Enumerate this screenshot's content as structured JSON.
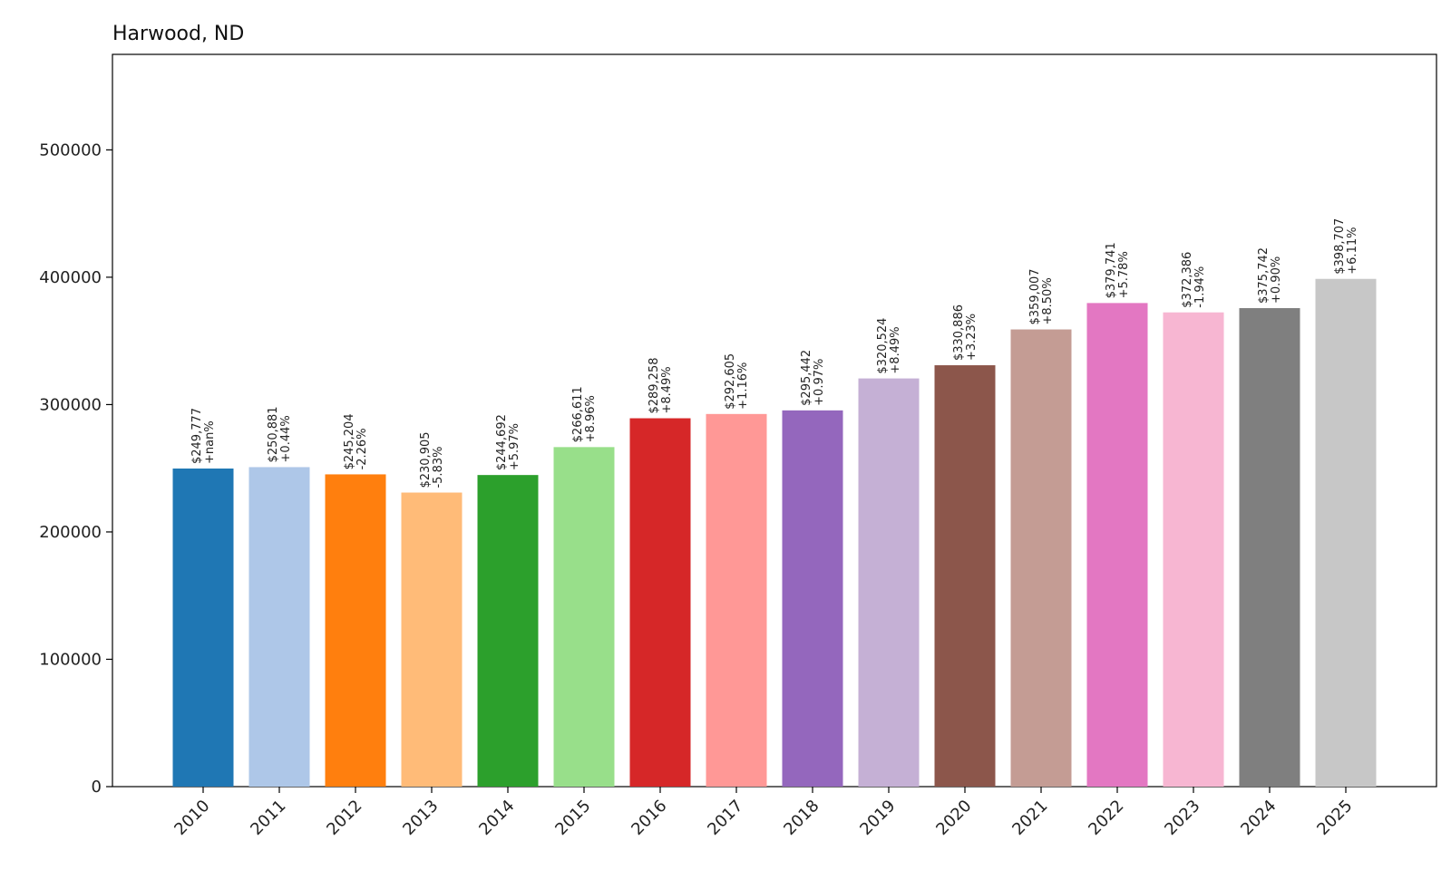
{
  "chart_data": {
    "type": "bar",
    "title": "Harwood, ND",
    "xlabel": "",
    "ylabel": "",
    "ylim": [
      0,
      575000
    ],
    "yticks": [
      0,
      100000,
      200000,
      300000,
      400000,
      500000
    ],
    "ytick_labels": [
      "0",
      "100000",
      "200000",
      "300000",
      "400000",
      "500000"
    ],
    "grid": false,
    "categories": [
      "2010",
      "2011",
      "2012",
      "2013",
      "2014",
      "2015",
      "2016",
      "2017",
      "2018",
      "2019",
      "2020",
      "2021",
      "2022",
      "2023",
      "2024",
      "2025"
    ],
    "values": [
      249777,
      250881,
      245204,
      230905,
      244692,
      266611,
      289258,
      292605,
      295442,
      320524,
      330886,
      359007,
      379741,
      372386,
      375742,
      398707
    ],
    "value_labels": [
      "$249,777",
      "$250,881",
      "$245,204",
      "$230,905",
      "$244,692",
      "$266,611",
      "$289,258",
      "$292,605",
      "$295,442",
      "$320,524",
      "$330,886",
      "$359,007",
      "$379,741",
      "$372,386",
      "$375,742",
      "$398,707"
    ],
    "change_labels": [
      "+nan%",
      "+0.44%",
      "-2.26%",
      "-5.83%",
      "+5.97%",
      "+8.96%",
      "+8.49%",
      "+1.16%",
      "+0.97%",
      "+8.49%",
      "+3.23%",
      "+8.50%",
      "+5.78%",
      "-1.94%",
      "+0.90%",
      "+6.11%"
    ],
    "colors": [
      "#1f77b4",
      "#aec7e8",
      "#ff7f0e",
      "#ffbb78",
      "#2ca02c",
      "#98df8a",
      "#d62728",
      "#ff9896",
      "#9467bd",
      "#c5b0d5",
      "#8c564b",
      "#c49c94",
      "#e377c2",
      "#f7b6d2",
      "#7f7f7f",
      "#c7c7c7"
    ]
  }
}
